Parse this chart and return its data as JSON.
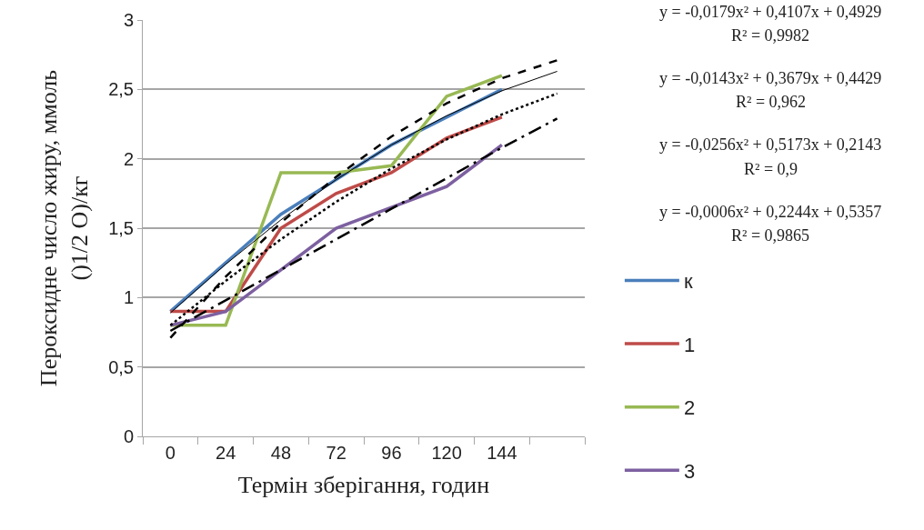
{
  "chart_data": {
    "type": "line",
    "xlabel": "Термін зберігання, годин",
    "ylabel": "Пероксидне число жиру, ммоль\n()1/2 O)/кг",
    "categories": [
      "0",
      "24",
      "48",
      "72",
      "96",
      "120",
      "144",
      null
    ],
    "series": [
      {
        "name": "к",
        "color": "#4a7ebb",
        "values": [
          0.9,
          1.25,
          1.6,
          1.85,
          2.1,
          2.3,
          2.5,
          null
        ]
      },
      {
        "name": "1",
        "color": "#be4b48",
        "values": [
          0.9,
          0.9,
          1.5,
          1.75,
          1.9,
          2.15,
          2.3,
          null
        ]
      },
      {
        "name": "2",
        "color": "#98b954",
        "values": [
          0.8,
          0.8,
          1.9,
          1.9,
          1.95,
          2.45,
          2.6,
          null
        ]
      },
      {
        "name": "3",
        "color": "#7d60a0",
        "values": [
          0.8,
          0.9,
          1.2,
          1.5,
          1.65,
          1.8,
          2.1,
          null
        ]
      },
      {
        "color": "#000000",
        "line_style": "solid",
        "values": [
          0.89,
          1.24,
          1.56,
          1.85,
          2.1,
          2.31,
          2.49,
          2.63
        ]
      },
      {
        "color": "#000000",
        "line_style": "dotted",
        "values": [
          0.8,
          1.12,
          1.42,
          1.69,
          1.93,
          2.14,
          2.32,
          2.47
        ]
      },
      {
        "color": "#000000",
        "line_style": "dashed",
        "values": [
          0.71,
          1.15,
          1.54,
          1.87,
          2.16,
          2.4,
          2.58,
          2.71
        ]
      },
      {
        "color": "#000000",
        "line_style": "dashdot",
        "values": [
          0.76,
          0.98,
          1.2,
          1.42,
          1.64,
          1.86,
          2.08,
          2.29
        ]
      }
    ],
    "annotations": [
      "y = -0,0179x² + 0,4107x + 0,4929",
      "R² = 0,9982",
      "y = -0,0143x² + 0,3679x + 0,4429",
      "R² = 0,962",
      "y = -0,0256x² + 0,5173x + 0,2143",
      "R² = 0,9",
      "y = -0,0006x² + 0,2244x + 0,5357",
      "R² = 0,9865"
    ],
    "ylim": [
      0,
      3
    ],
    "yticks": [
      {
        "value": 0,
        "label": "0"
      },
      {
        "value": 0.5,
        "label": "0,5"
      },
      {
        "value": 1,
        "label": "1"
      },
      {
        "value": 1.5,
        "label": "1,5"
      },
      {
        "value": 2,
        "label": "2"
      },
      {
        "value": 2.5,
        "label": "2,5"
      },
      {
        "value": 3,
        "label": "3"
      }
    ],
    "grid": "y",
    "legend": "right",
    "marker": "none",
    "line_style": "solid"
  }
}
